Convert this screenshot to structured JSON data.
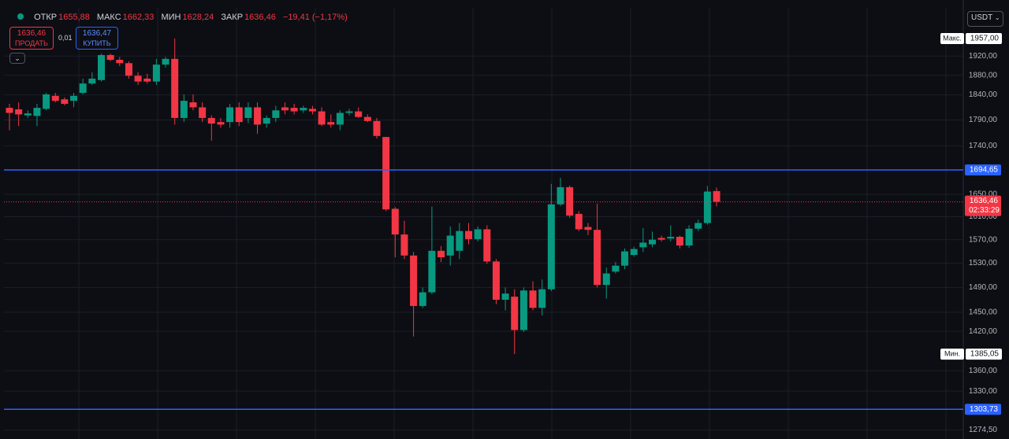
{
  "toolbar": {
    "open_label": "ОТКР",
    "open": "1655,88",
    "high_label": "МАКС",
    "high": "1662,33",
    "low_label": "МИН",
    "low": "1628,24",
    "close_label": "ЗАКР",
    "close": "1636,46",
    "change": "−19,41 (−1,17%)",
    "sell_price": "1636,46",
    "sell_label": "ПРОДАТЬ",
    "spread": "0,01",
    "buy_price": "1636,47",
    "buy_label": "КУПИТЬ",
    "currency": "USDT"
  },
  "chart_data": {
    "type": "candlestick",
    "log_scale": true,
    "grid": true,
    "up_color": "#089981",
    "down_color": "#f23645",
    "ylim": [
      1262,
      2024
    ],
    "yticks": [
      {
        "value": 1920,
        "label": "1920,00"
      },
      {
        "value": 1880,
        "label": "1880,00"
      },
      {
        "value": 1840,
        "label": "1840,00"
      },
      {
        "value": 1790,
        "label": "1790,00"
      },
      {
        "value": 1740,
        "label": "1740,00"
      },
      {
        "value": 1650,
        "label": "1650,00"
      },
      {
        "value": 1610,
        "label": "1610,00"
      },
      {
        "value": 1570,
        "label": "1570,00"
      },
      {
        "value": 1530,
        "label": "1530,00"
      },
      {
        "value": 1490,
        "label": "1490,00"
      },
      {
        "value": 1450,
        "label": "1450,00"
      },
      {
        "value": 1420,
        "label": "1420,00"
      },
      {
        "value": 1360,
        "label": "1360,00"
      },
      {
        "value": 1330,
        "label": "1330,00"
      },
      {
        "value": 1274.5,
        "label": "1274,50"
      }
    ],
    "open": [
      1814,
      1811,
      1799,
      1798,
      1812,
      1838,
      1831,
      1828,
      1844,
      1863,
      1870,
      1922,
      1912,
      1905,
      1879,
      1873,
      1867,
      1902,
      1914,
      1794,
      1825,
      1815,
      1794,
      1786,
      1786,
      1815,
      1794,
      1815,
      1783,
      1794,
      1815,
      1814,
      1809,
      1812,
      1807,
      1786,
      1781,
      1804,
      1807,
      1796,
      1788,
      1757,
      1624,
      1579,
      1543,
      1460,
      1482,
      1551,
      1543,
      1551,
      1585,
      1571,
      1588,
      1533,
      1470,
      1475,
      1422,
      1485,
      1457,
      1487,
      1632,
      1663,
      1615,
      1592,
      1587,
      1494,
      1516,
      1526,
      1544,
      1557,
      1562,
      1573,
      1572,
      1575,
      1560,
      1589,
      1599,
      1655.88
    ],
    "high": [
      1822,
      1825,
      1809,
      1822,
      1844,
      1844,
      1835,
      1844,
      1873,
      1886,
      1925,
      1925,
      1918,
      1909,
      1886,
      1883,
      1914,
      1918,
      1957,
      1841,
      1841,
      1825,
      1799,
      1794,
      1822,
      1825,
      1825,
      1825,
      1799,
      1818,
      1825,
      1822,
      1818,
      1818,
      1815,
      1801,
      1809,
      1812,
      1815,
      1801,
      1794,
      1757,
      1627,
      1603,
      1549,
      1490,
      1628,
      1559,
      1593,
      1599,
      1599,
      1593,
      1595,
      1537,
      1490,
      1487,
      1490,
      1500,
      1503,
      1669,
      1680,
      1666,
      1620,
      1599,
      1633,
      1523,
      1532,
      1555,
      1558,
      1590,
      1584,
      1577,
      1595,
      1577,
      1595,
      1605,
      1665,
      1662.33
    ],
    "low": [
      1770,
      1778,
      1794,
      1778,
      1809,
      1825,
      1819,
      1815,
      1841,
      1860,
      1867,
      1909,
      1899,
      1873,
      1860,
      1863,
      1860,
      1896,
      1781,
      1786,
      1809,
      1786,
      1750,
      1775,
      1775,
      1778,
      1784,
      1763,
      1775,
      1786,
      1801,
      1801,
      1804,
      1801,
      1778,
      1775,
      1770,
      1799,
      1794,
      1786,
      1754,
      1620,
      1540,
      1537,
      1412,
      1457,
      1479,
      1532,
      1526,
      1537,
      1562,
      1567,
      1529,
      1463,
      1453,
      1385.05,
      1419,
      1453,
      1445,
      1484,
      1629,
      1608,
      1585,
      1578,
      1490,
      1472,
      1513,
      1520,
      1541,
      1549,
      1557,
      1567,
      1567,
      1555,
      1556,
      1585,
      1596,
      1628.24
    ],
    "close": [
      1804,
      1801,
      1803,
      1814,
      1841,
      1828,
      1822,
      1838,
      1863,
      1873,
      1922,
      1912,
      1905,
      1879,
      1867,
      1867,
      1902,
      1914,
      1794,
      1828,
      1815,
      1794,
      1783,
      1781,
      1815,
      1786,
      1815,
      1781,
      1794,
      1809,
      1809,
      1807,
      1814,
      1807,
      1781,
      1781,
      1804,
      1807,
      1796,
      1788,
      1759,
      1623,
      1579,
      1543,
      1460,
      1482,
      1551,
      1540,
      1577,
      1585,
      1571,
      1588,
      1533,
      1470,
      1480,
      1422,
      1485,
      1457,
      1487,
      1632,
      1663,
      1612,
      1588,
      1587,
      1494,
      1513,
      1526,
      1550,
      1554,
      1565,
      1570,
      1570,
      1575,
      1560,
      1589,
      1599,
      1655,
      1636.46
    ],
    "price_lines": [
      {
        "value": 1694.65,
        "label": "1694,65",
        "color": "#2962ff"
      },
      {
        "value": 1303.73,
        "label": "1303,73",
        "color": "#2962ff"
      }
    ],
    "last_price": {
      "value": 1636.46,
      "label": "1636,46",
      "countdown": "02:33:29",
      "color": "#f23645"
    },
    "max_marker": {
      "label": "Макс.",
      "value": 1957,
      "value_label": "1957,00"
    },
    "min_marker": {
      "label": "Мин.",
      "value": 1385.05,
      "value_label": "1385,05"
    }
  }
}
